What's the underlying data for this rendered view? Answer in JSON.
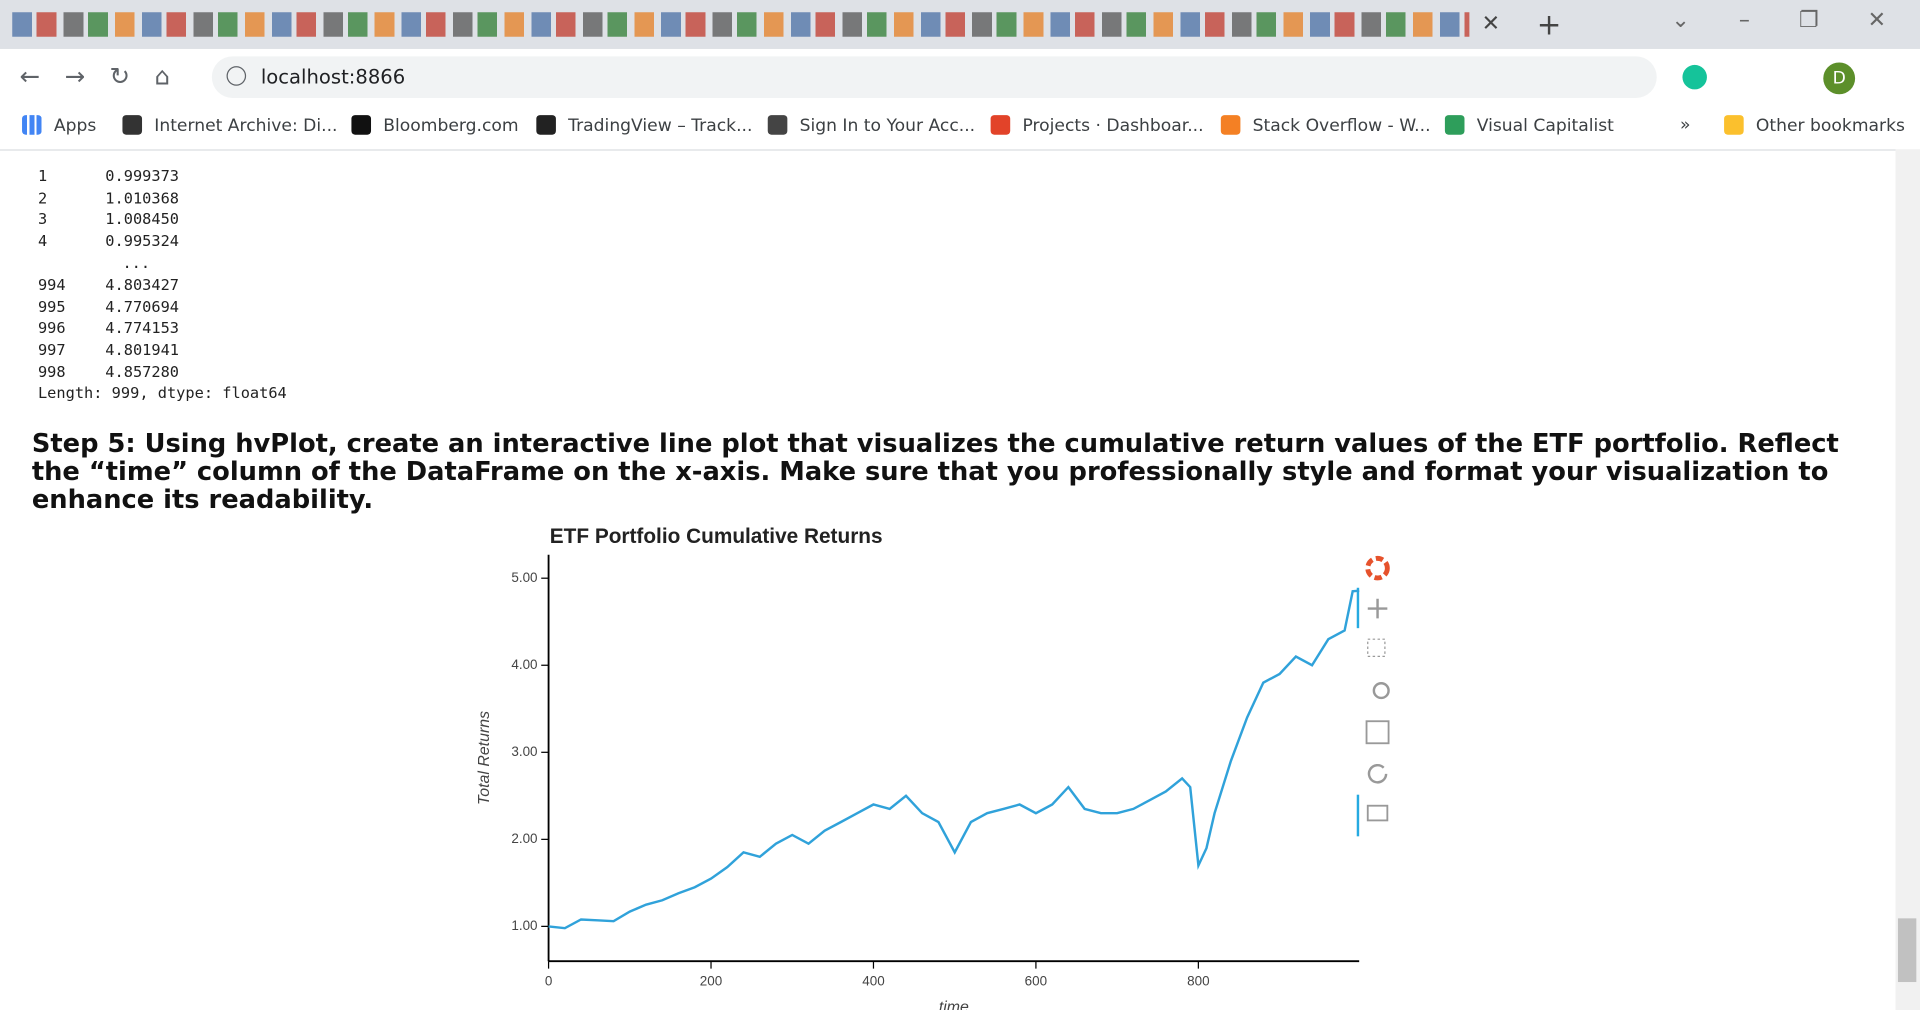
{
  "browser": {
    "url": "localhost:8866",
    "apps": "Apps",
    "bookmarks": [
      "Internet Archive: Di...",
      "Bloomberg.com",
      "TradingView – Track...",
      "Sign In to Your Acc...",
      "Projects · Dashboar...",
      "Stack Overflow - W...",
      "Visual Capitalist"
    ],
    "more": "»",
    "other_bookmarks": "Other bookmarks",
    "profile": "D"
  },
  "output": {
    "rows": [
      [
        "1",
        "0.999373"
      ],
      [
        "2",
        "1.010368"
      ],
      [
        "3",
        "1.008450"
      ],
      [
        "4",
        "0.995324"
      ],
      [
        "994",
        "4.803427"
      ],
      [
        "995",
        "4.770694"
      ],
      [
        "996",
        "4.774153"
      ],
      [
        "997",
        "4.801941"
      ],
      [
        "998",
        "4.857280"
      ]
    ],
    "ellipsis": "...",
    "footer": "Length: 999, dtype: float64"
  },
  "heading": "Step 5: Using hvPlot, create an interactive line plot that visualizes the cumulative return values of the ETF portfolio. Reflect the “time” column of the DataFrame on the x-axis. Make sure that you professionally style and format your visualization to enhance its readability.",
  "chart_data": {
    "type": "line",
    "title": "ETF Portfolio Cumulative Returns",
    "x_label": "time",
    "y_label": "Total Returns",
    "series": [
      {
        "name": "Total Returns",
        "color": "#30a2da",
        "x": [
          0,
          20,
          40,
          60,
          80,
          100,
          120,
          140,
          160,
          180,
          200,
          220,
          240,
          260,
          280,
          300,
          320,
          340,
          360,
          380,
          400,
          420,
          440,
          460,
          480,
          500,
          520,
          540,
          560,
          580,
          600,
          620,
          640,
          660,
          680,
          700,
          720,
          740,
          760,
          780,
          790,
          800,
          810,
          820,
          840,
          860,
          880,
          900,
          920,
          940,
          960,
          980,
          990,
          998
        ],
        "values": [
          1.0,
          0.98,
          1.08,
          1.07,
          1.06,
          1.17,
          1.25,
          1.3,
          1.38,
          1.45,
          1.55,
          1.68,
          1.85,
          1.8,
          1.95,
          2.05,
          1.95,
          2.1,
          2.2,
          2.3,
          2.4,
          2.35,
          2.5,
          2.3,
          2.2,
          1.85,
          2.2,
          2.3,
          2.35,
          2.4,
          2.3,
          2.4,
          2.6,
          2.35,
          2.3,
          2.3,
          2.35,
          2.45,
          2.55,
          2.7,
          2.6,
          1.7,
          1.9,
          2.3,
          2.9,
          3.4,
          3.8,
          3.9,
          4.1,
          4.0,
          4.3,
          4.4,
          4.85,
          4.857
        ]
      }
    ],
    "xlim": [
      0,
      998
    ],
    "xticks": [
      0,
      200,
      400,
      600,
      800
    ],
    "ylim": [
      0.6,
      5.27
    ],
    "yticks": [
      {
        "value": 1,
        "label": "1.00"
      },
      {
        "value": 2,
        "label": "2.00"
      },
      {
        "value": 3,
        "label": "3.00"
      },
      {
        "value": 4,
        "label": "4.00"
      },
      {
        "value": 5,
        "label": "5.00"
      }
    ],
    "grid": false
  }
}
